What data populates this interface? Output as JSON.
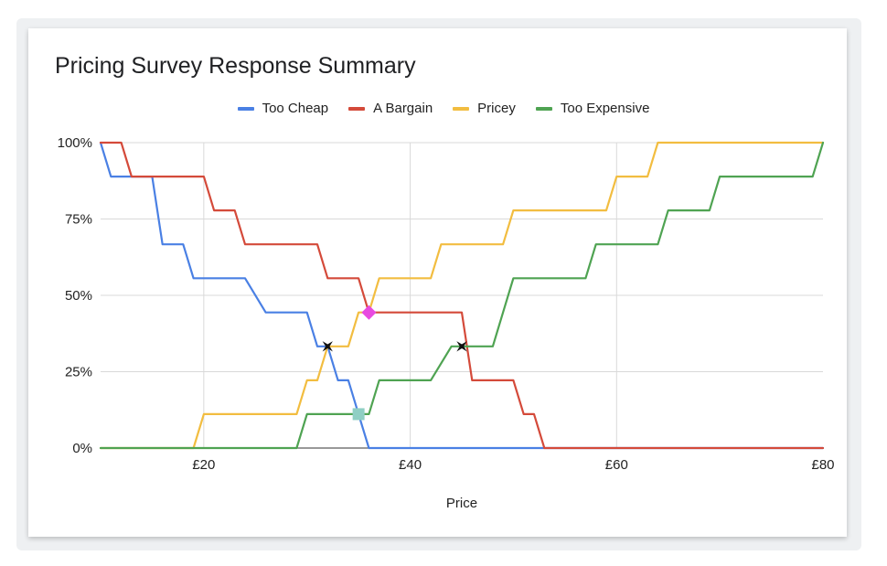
{
  "chart_data": {
    "type": "line",
    "title": "Pricing Survey Response Summary",
    "xlabel": "Price",
    "ylabel": "",
    "xlim": [
      10,
      80
    ],
    "ylim": [
      0,
      100
    ],
    "x_ticks": [
      {
        "value": 20,
        "label": "£20"
      },
      {
        "value": 40,
        "label": "£40"
      },
      {
        "value": 60,
        "label": "£60"
      },
      {
        "value": 80,
        "label": "£80"
      }
    ],
    "y_ticks": [
      {
        "value": 0,
        "label": "0%"
      },
      {
        "value": 25,
        "label": "25%"
      },
      {
        "value": 50,
        "label": "50%"
      },
      {
        "value": 75,
        "label": "75%"
      },
      {
        "value": 100,
        "label": "100%"
      }
    ],
    "grid": true,
    "legend_position": "top",
    "series": [
      {
        "name": "Too Cheap",
        "color": "#4a80e4",
        "x": [
          10,
          11,
          12,
          15,
          16,
          18,
          19,
          24,
          26,
          30,
          31,
          32,
          33,
          34,
          35,
          36,
          80
        ],
        "y": [
          100,
          88.9,
          88.9,
          88.9,
          66.7,
          66.7,
          55.6,
          55.6,
          44.4,
          44.4,
          33.3,
          33.3,
          22.2,
          22.2,
          11.1,
          0,
          0
        ]
      },
      {
        "name": "A Bargain",
        "color": "#d44a3a",
        "x": [
          10,
          12,
          13,
          20,
          21,
          23,
          24,
          31,
          32,
          35,
          36,
          45,
          46,
          50,
          51,
          52,
          53,
          80
        ],
        "y": [
          100,
          100,
          88.9,
          88.9,
          77.8,
          77.8,
          66.7,
          66.7,
          55.6,
          55.6,
          44.4,
          44.4,
          22.2,
          22.2,
          11.1,
          11.1,
          0,
          0
        ]
      },
      {
        "name": "Pricey",
        "color": "#f2bd40",
        "x": [
          10,
          19,
          20,
          29,
          30,
          31,
          32,
          34,
          35,
          36,
          37,
          42,
          43,
          49,
          50,
          59,
          60,
          63,
          64,
          80
        ],
        "y": [
          0,
          0,
          11.1,
          11.1,
          22.2,
          22.2,
          33.3,
          33.3,
          44.4,
          44.4,
          55.6,
          55.6,
          66.7,
          66.7,
          77.8,
          77.8,
          88.9,
          88.9,
          100,
          100
        ]
      },
      {
        "name": "Too Expensive",
        "color": "#4fa352",
        "x": [
          10,
          29,
          30,
          35,
          36,
          37,
          41,
          42,
          44,
          45,
          48,
          49,
          50,
          57,
          58,
          64,
          65,
          69,
          70,
          79,
          80
        ],
        "y": [
          0,
          0,
          11.1,
          11.1,
          11.1,
          22.2,
          22.2,
          22.2,
          33.3,
          33.3,
          33.3,
          44.4,
          55.6,
          55.6,
          66.7,
          66.7,
          77.8,
          77.8,
          88.9,
          88.9,
          100
        ]
      }
    ],
    "markers": [
      {
        "x": 32,
        "y": 33.3,
        "shape": "star",
        "color": "#111111"
      },
      {
        "x": 45,
        "y": 33.3,
        "shape": "star",
        "color": "#111111"
      },
      {
        "x": 36,
        "y": 44.4,
        "shape": "diamond",
        "color": "#e84ae0"
      },
      {
        "x": 35,
        "y": 11.1,
        "shape": "square",
        "color": "#8fcfc4"
      }
    ]
  }
}
